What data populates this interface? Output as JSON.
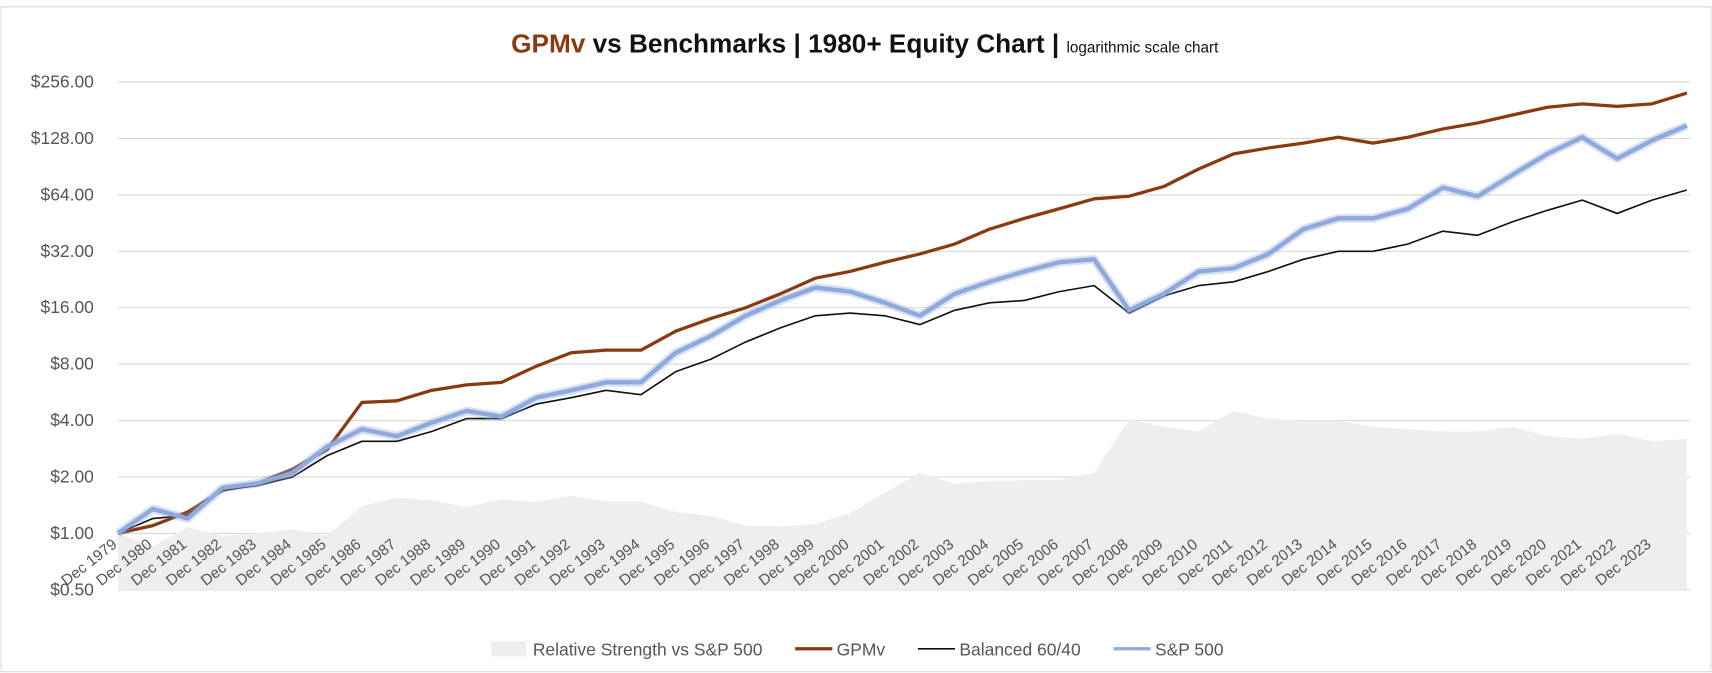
{
  "chart_data": {
    "type": "line",
    "title_highlight": "GPMv",
    "title": "vs Benchmarks | 1980+ Equity Chart |",
    "subtitle": "logarithmic scale chart",
    "log_scale": true,
    "grid": true,
    "legend": "bottom",
    "categories": [
      "Dec 1979",
      "Dec 1980",
      "Dec 1981",
      "Dec 1982",
      "Dec 1983",
      "Dec 1984",
      "Dec 1985",
      "Dec 1986",
      "Dec 1987",
      "Dec 1988",
      "Dec 1989",
      "Dec 1990",
      "Dec 1991",
      "Dec 1992",
      "Dec 1993",
      "Dec 1994",
      "Dec 1995",
      "Dec 1996",
      "Dec 1997",
      "Dec 1998",
      "Dec 1999",
      "Dec 2000",
      "Dec 2001",
      "Dec 2002",
      "Dec 2003",
      "Dec 2004",
      "Dec 2005",
      "Dec 2006",
      "Dec 2007",
      "Dec 2008",
      "Dec 2009",
      "Dec 2010",
      "Dec 2011",
      "Dec 2012",
      "Dec 2013",
      "Dec 2014",
      "Dec 2015",
      "Dec 2016",
      "Dec 2017",
      "Dec 2018",
      "Dec 2019",
      "Dec 2020",
      "Dec 2021",
      "Dec 2022",
      "Dec 2023",
      null
    ],
    "ylim": [
      0.5,
      256
    ],
    "yticks": [
      {
        "value": 0.5,
        "label": "$0.50"
      },
      {
        "value": 1,
        "label": "$1.00"
      },
      {
        "value": 2,
        "label": "$2.00"
      },
      {
        "value": 4,
        "label": "$4.00"
      },
      {
        "value": 8,
        "label": "$8.00"
      },
      {
        "value": 16,
        "label": "$16.00"
      },
      {
        "value": 32,
        "label": "$32.00"
      },
      {
        "value": 64,
        "label": "$64.00"
      },
      {
        "value": 128,
        "label": "$128.00"
      },
      {
        "value": 256,
        "label": "$256.00"
      }
    ],
    "series": [
      {
        "name": "Relative Strength vs S&P 500",
        "kind": "area",
        "color": "#eeeeee",
        "values": [
          1.0,
          0.85,
          1.08,
          0.97,
          1.0,
          1.05,
          0.97,
          1.4,
          1.55,
          1.5,
          1.38,
          1.52,
          1.47,
          1.59,
          1.48,
          1.48,
          1.3,
          1.24,
          1.1,
          1.09,
          1.12,
          1.28,
          1.65,
          2.1,
          1.84,
          1.9,
          1.92,
          1.93,
          2.1,
          4.06,
          3.7,
          3.5,
          4.5,
          4.1,
          4.0,
          4.0,
          3.7,
          3.6,
          3.5,
          3.5,
          3.7,
          3.3,
          3.2,
          3.4,
          3.1,
          3.2
        ]
      },
      {
        "name": "GPMv",
        "kind": "line",
        "color": "#8b3a0f",
        "values": [
          1.0,
          1.1,
          1.3,
          1.7,
          1.85,
          2.2,
          2.8,
          5.0,
          5.1,
          5.8,
          6.2,
          6.4,
          7.8,
          9.2,
          9.5,
          9.5,
          12,
          14,
          16,
          19,
          23,
          25,
          28,
          31,
          35,
          42,
          48,
          54,
          61,
          63,
          71,
          88,
          106,
          114,
          121,
          130,
          121,
          130,
          144,
          155,
          171,
          188,
          196,
          190,
          196,
          224
        ]
      },
      {
        "name": "Balanced 60/40",
        "kind": "line",
        "color": "#111111",
        "values": [
          1.0,
          1.2,
          1.25,
          1.7,
          1.8,
          2.0,
          2.6,
          3.1,
          3.1,
          3.5,
          4.1,
          4.1,
          4.9,
          5.3,
          5.8,
          5.5,
          7.3,
          8.5,
          10.5,
          12.5,
          14.5,
          15,
          14.5,
          13,
          15.5,
          17,
          17.5,
          19.5,
          21,
          15,
          18.5,
          21,
          22,
          25,
          29,
          32,
          32,
          35,
          41,
          39,
          46,
          53,
          60,
          51,
          60,
          68
        ]
      },
      {
        "name": "S&P 500",
        "kind": "line",
        "color": "#8fa9dc",
        "values": [
          1.0,
          1.35,
          1.2,
          1.75,
          1.85,
          2.1,
          2.9,
          3.6,
          3.3,
          3.9,
          4.5,
          4.2,
          5.3,
          5.8,
          6.4,
          6.4,
          9.2,
          11.3,
          14.5,
          17.5,
          20.5,
          19.5,
          17,
          14.5,
          19,
          22,
          25,
          28,
          29,
          15.5,
          19,
          25,
          26,
          31,
          42,
          48,
          48,
          54,
          70,
          63,
          82,
          106,
          130,
          100,
          125,
          150
        ]
      }
    ]
  }
}
